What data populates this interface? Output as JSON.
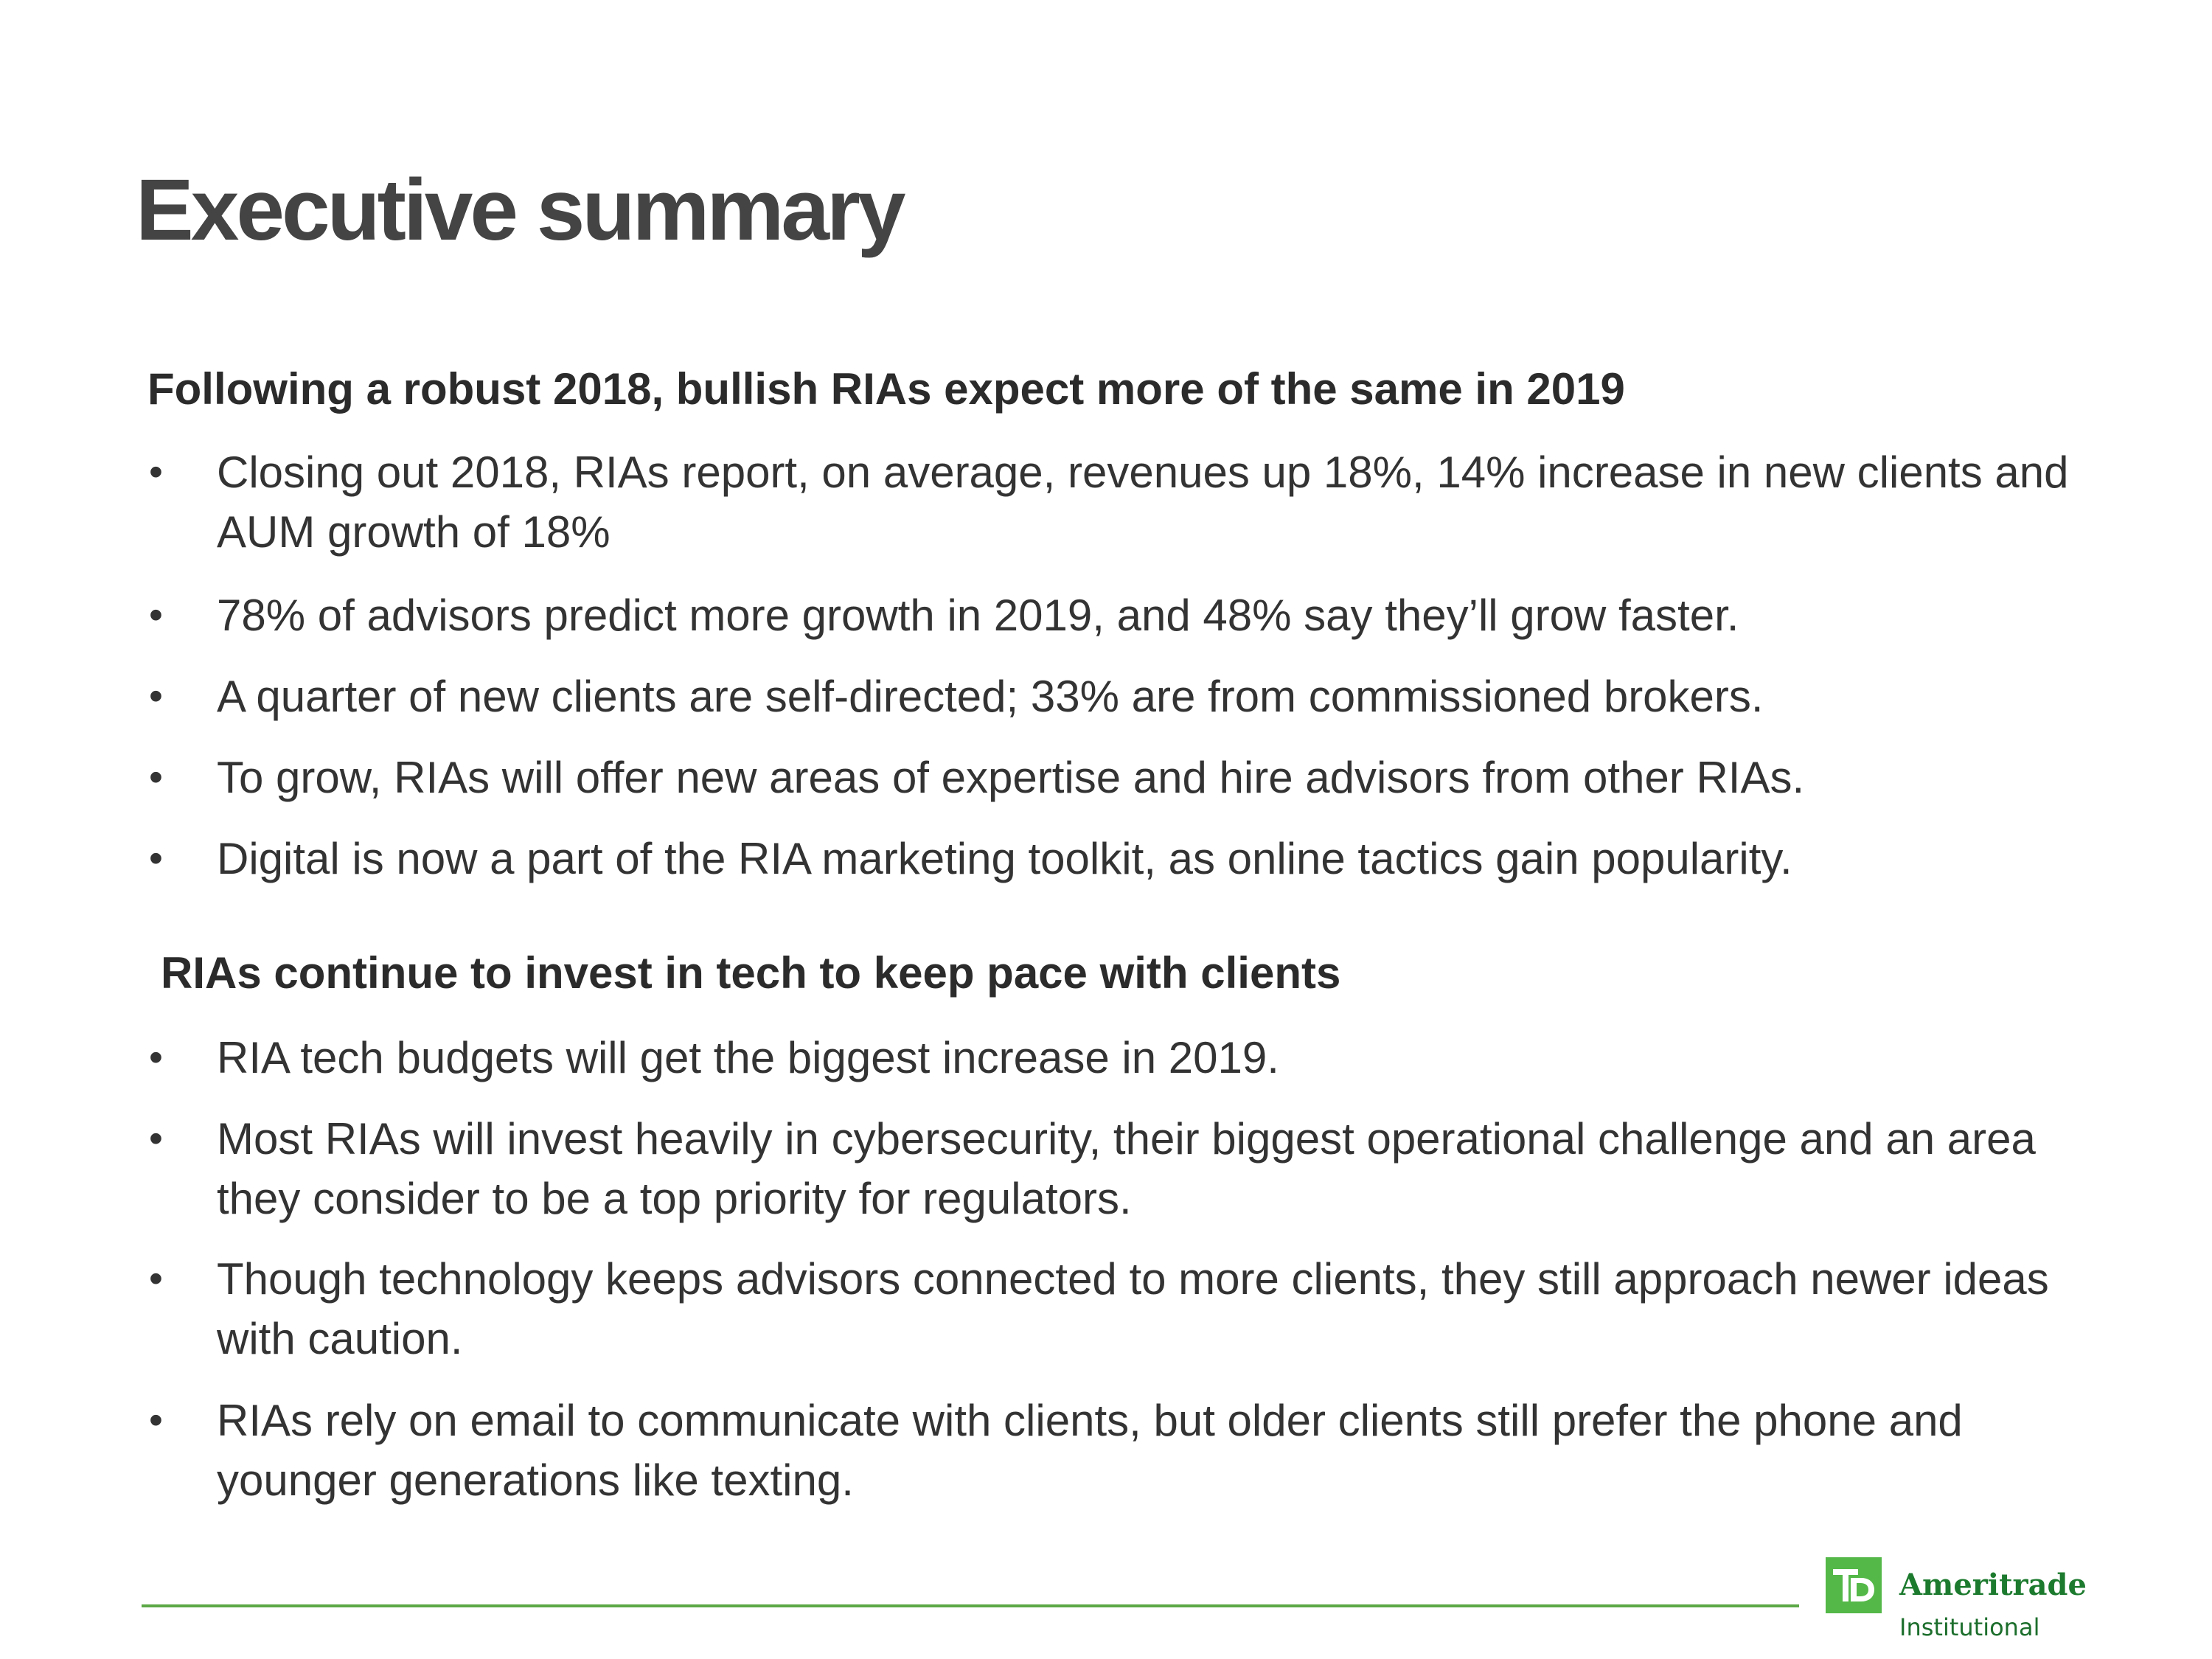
{
  "slide": {
    "title": "Executive summary",
    "sections": [
      {
        "heading": "Following a robust 2018, bullish RIAs expect more of the same in 2019",
        "bullets": [
          "Closing out 2018, RIAs report, on average, revenues up 18%, 14% increase in new clients and AUM growth of 18%",
          "78% of advisors predict more growth in 2019, and 48% say they’ll grow faster.",
          "A quarter of new clients are self-directed; 33% are from commissioned brokers.",
          "To grow, RIAs will offer new areas of expertise and hire advisors from other RIAs.",
          "Digital is now a part of the RIA marketing toolkit, as online tactics gain popularity."
        ]
      },
      {
        "heading": "RIAs continue to invest in tech to keep pace with clients",
        "bullets": [
          "RIA tech budgets will get the biggest increase in 2019.",
          "Most RIAs will invest heavily in cybersecurity, their biggest operational challenge and an area they consider to be a top priority for regulators.",
          "Though technology keeps advisors connected to more clients, they still approach newer ideas with caution.",
          "RIAs rely on email to communicate with clients, but older clients still prefer the phone and younger generations like texting."
        ]
      }
    ],
    "bullet_symbol": "•"
  },
  "footer": {
    "logo": {
      "mark": "TD",
      "name": "Ameritrade",
      "subtitle": "Institutional",
      "icon": "td-logo-icon"
    }
  },
  "colors": {
    "title": "#444444",
    "text": "#333333",
    "divider": "#5ba846",
    "brand_green": "#54b848",
    "brand_dark_green": "#1c7a2e"
  }
}
